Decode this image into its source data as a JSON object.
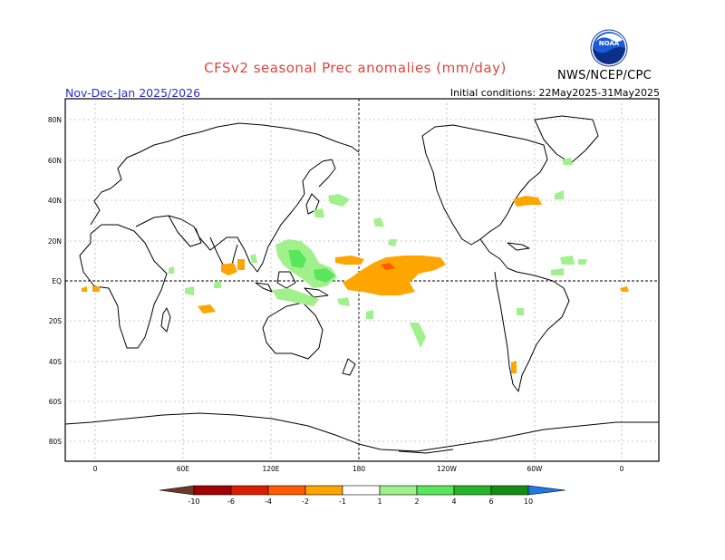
{
  "header": {
    "title": "CFSv2 seasonal Prec anomalies (mm/day)",
    "period": "Nov-Dec-Jan 2025/2026",
    "initial_conditions": "Initial conditions: 22May2025-31May2025",
    "agency": "NWS/NCEP/CPC",
    "logo_text": "NOAA"
  },
  "map": {
    "lat_labels": [
      "80N",
      "60N",
      "40N",
      "20N",
      "EQ",
      "20S",
      "40S",
      "60S",
      "80S"
    ],
    "lon_labels": [
      "0",
      "60E",
      "120E",
      "180",
      "120W",
      "60W",
      "0"
    ]
  },
  "colorbar": {
    "labels": [
      "-10",
      "-6",
      "-4",
      "-2",
      "-1",
      "1",
      "2",
      "4",
      "6",
      "10"
    ],
    "colors": {
      "below_-10": "#6b3a2a",
      "-10_-6": "#a00000",
      "-6_-4": "#d81e00",
      "-4_-2": "#ff5a00",
      "-2_-1": "#ffa500",
      "-1_1": "#ffffff",
      "1_2": "#a0f08c",
      "2_4": "#5ae65a",
      "4_6": "#28b428",
      "6_10": "#148c14",
      "above_10": "#1e78e6"
    }
  }
}
